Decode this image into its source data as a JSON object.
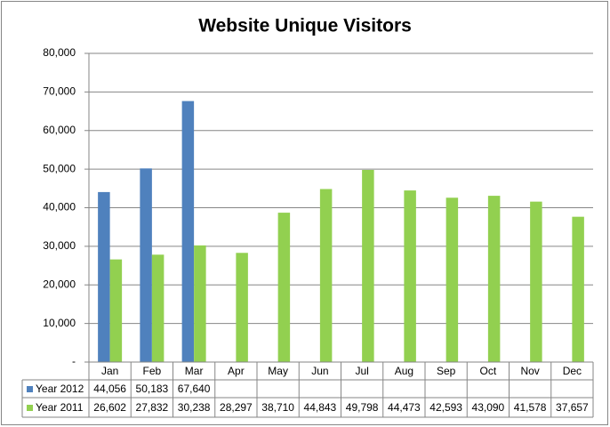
{
  "chart_data": {
    "type": "bar",
    "title": "Website Unique Visitors",
    "categories": [
      "Jan",
      "Feb",
      "Mar",
      "Apr",
      "May",
      "Jun",
      "Jul",
      "Aug",
      "Sep",
      "Oct",
      "Nov",
      "Dec"
    ],
    "series": [
      {
        "name": "Year 2012",
        "color": "#4f81bd",
        "values": [
          44056,
          50183,
          67640,
          null,
          null,
          null,
          null,
          null,
          null,
          null,
          null,
          null
        ],
        "value_labels": [
          "44,056",
          "50,183",
          "67,640",
          null,
          null,
          null,
          null,
          null,
          null,
          null,
          null,
          null
        ]
      },
      {
        "name": "Year 2011",
        "color": "#92d050",
        "values": [
          26602,
          27832,
          30238,
          28297,
          38710,
          44843,
          49798,
          44473,
          42593,
          43090,
          41578,
          37657
        ],
        "value_labels": [
          "26,602",
          "27,832",
          "30,238",
          "28,297",
          "38,710",
          "44,843",
          "49,798",
          "44,473",
          "42,593",
          "43,090",
          "41,578",
          "37,657"
        ]
      }
    ],
    "ylim": [
      0,
      80000
    ],
    "yticks": [
      {
        "value": 0,
        "label": "-"
      },
      {
        "value": 10000,
        "label": "10,000"
      },
      {
        "value": 20000,
        "label": "20,000"
      },
      {
        "value": 30000,
        "label": "30,000"
      },
      {
        "value": 40000,
        "label": "40,000"
      },
      {
        "value": 50000,
        "label": "50,000"
      },
      {
        "value": 60000,
        "label": "60,000"
      },
      {
        "value": 70000,
        "label": "70,000"
      },
      {
        "value": 80000,
        "label": "80,000"
      }
    ],
    "grid": true
  }
}
